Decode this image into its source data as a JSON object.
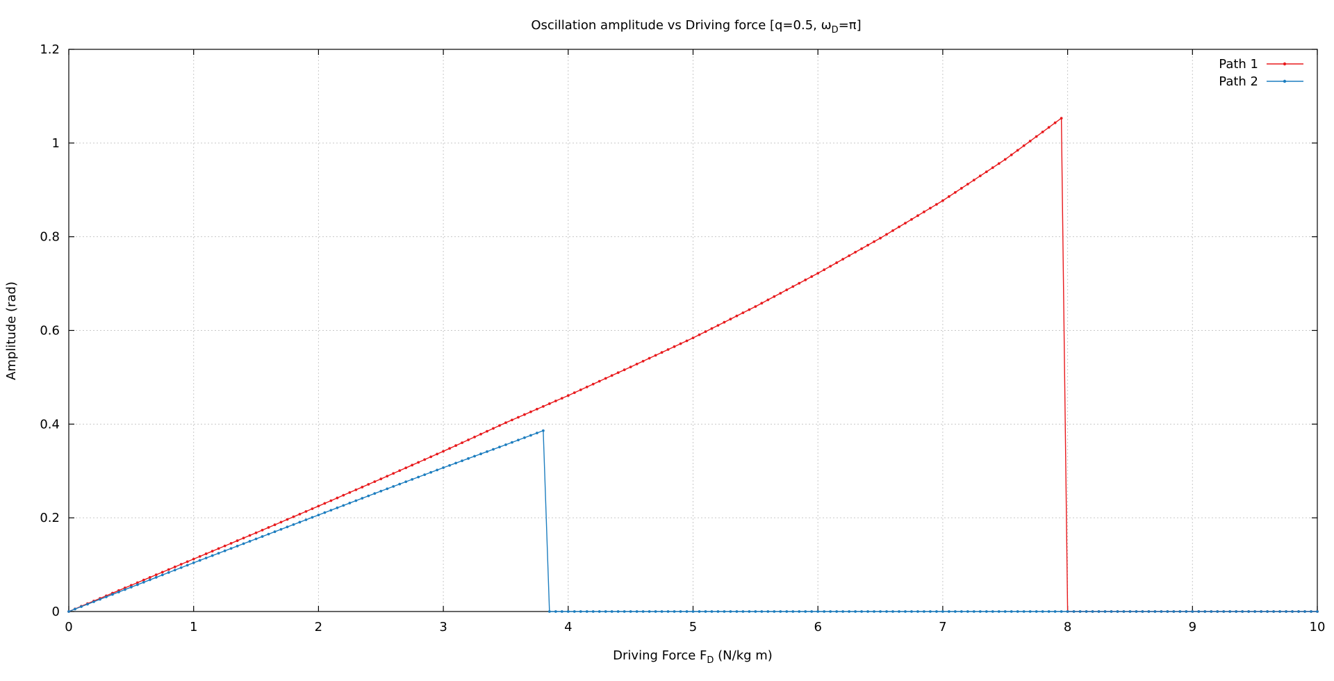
{
  "chart_data": {
    "type": "line",
    "title": {
      "prefix": "Oscillation amplitude vs Driving force [q=0.5, ω",
      "sub": "D",
      "suffix": "=π]"
    },
    "xlabel": {
      "prefix": "Driving Force F",
      "sub": "D",
      "suffix": " (N/kg m)"
    },
    "ylabel": "Amplitude (rad)",
    "xlim": [
      0,
      10
    ],
    "ylim": [
      0,
      1.2
    ],
    "xticks": [
      "0",
      "1",
      "2",
      "3",
      "4",
      "5",
      "6",
      "7",
      "8",
      "9",
      "10"
    ],
    "yticks": [
      "0",
      "0.2",
      "0.4",
      "0.6",
      "0.8",
      "1",
      "1.2"
    ],
    "grid": true,
    "legend": "top-right",
    "series": [
      {
        "name": "Path 1",
        "color": "#e8191c",
        "points": [
          [
            0,
            0
          ],
          [
            0.5,
            0.056
          ],
          [
            1,
            0.112
          ],
          [
            1.5,
            0.168
          ],
          [
            2,
            0.225
          ],
          [
            2.5,
            0.283
          ],
          [
            3,
            0.342
          ],
          [
            3.5,
            0.403
          ],
          [
            4,
            0.461
          ],
          [
            4.5,
            0.522
          ],
          [
            5,
            0.584
          ],
          [
            5.5,
            0.651
          ],
          [
            6,
            0.722
          ],
          [
            6.5,
            0.797
          ],
          [
            7,
            0.877
          ],
          [
            7.5,
            0.965
          ],
          [
            7.95,
            1.053
          ],
          [
            8.0,
            0
          ],
          [
            10,
            0
          ]
        ]
      },
      {
        "name": "Path 2",
        "color": "#1c7dbf",
        "points": [
          [
            0,
            0
          ],
          [
            0.5,
            0.052
          ],
          [
            1,
            0.104
          ],
          [
            1.5,
            0.155
          ],
          [
            2,
            0.206
          ],
          [
            2.5,
            0.257
          ],
          [
            3,
            0.307
          ],
          [
            3.5,
            0.356
          ],
          [
            3.8,
            0.386
          ],
          [
            3.85,
            0
          ],
          [
            10,
            0
          ]
        ]
      }
    ]
  }
}
